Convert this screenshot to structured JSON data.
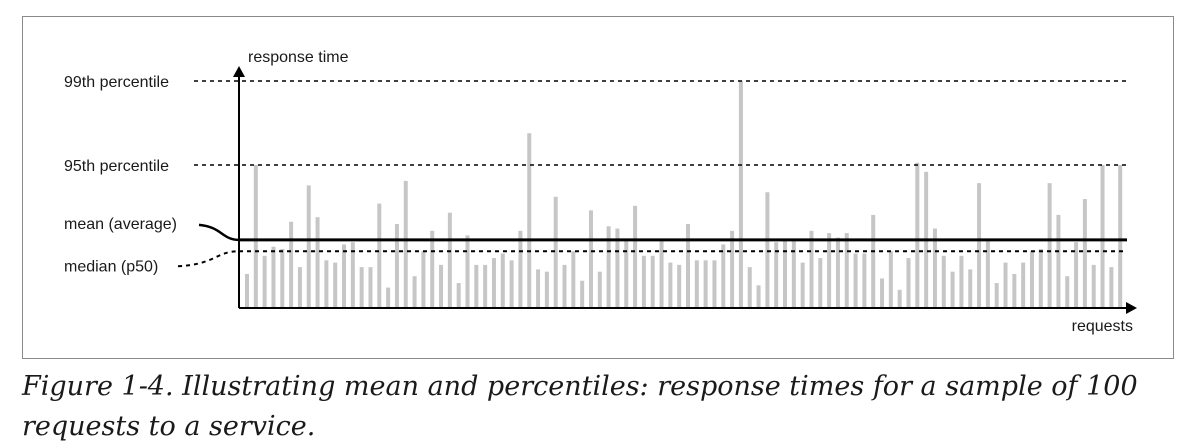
{
  "chart_data": {
    "type": "bar",
    "ylabel": "response time",
    "xlabel": "requests",
    "reference_lines": {
      "p99": {
        "label": "99th percentile",
        "value": 100
      },
      "p95": {
        "label": "95th percentile",
        "value": 63
      },
      "mean": {
        "label": "mean (average)",
        "value": 30
      },
      "median": {
        "label": "median (p50)",
        "value": 25
      }
    },
    "ylim": [
      0,
      100
    ],
    "values": [
      15,
      63,
      23,
      27,
      26,
      38,
      18,
      54,
      40,
      21,
      20,
      28,
      29,
      18,
      18,
      46,
      9,
      37,
      56,
      14,
      25,
      34,
      19,
      42,
      11,
      32,
      19,
      19,
      22,
      24,
      21,
      34,
      77,
      17,
      16,
      49,
      19,
      25,
      12,
      43,
      16,
      36,
      35,
      30,
      45,
      23,
      23,
      30,
      20,
      19,
      37,
      21,
      21,
      21,
      28,
      34,
      100,
      18,
      10,
      51,
      29,
      30,
      30,
      20,
      34,
      22,
      33,
      31,
      33,
      24,
      24,
      41,
      13,
      25,
      8,
      22,
      64,
      60,
      35,
      23,
      16,
      23,
      17,
      55,
      30,
      11,
      20,
      15,
      20,
      25,
      26,
      55,
      41,
      14,
      29,
      48,
      19,
      63,
      18,
      63
    ],
    "bar_color": "#c6c6c6",
    "line_color": "#000000"
  },
  "caption": "Figure 1-4. Illustrating mean and percentiles: response times for a sample of 100 requests to a service."
}
